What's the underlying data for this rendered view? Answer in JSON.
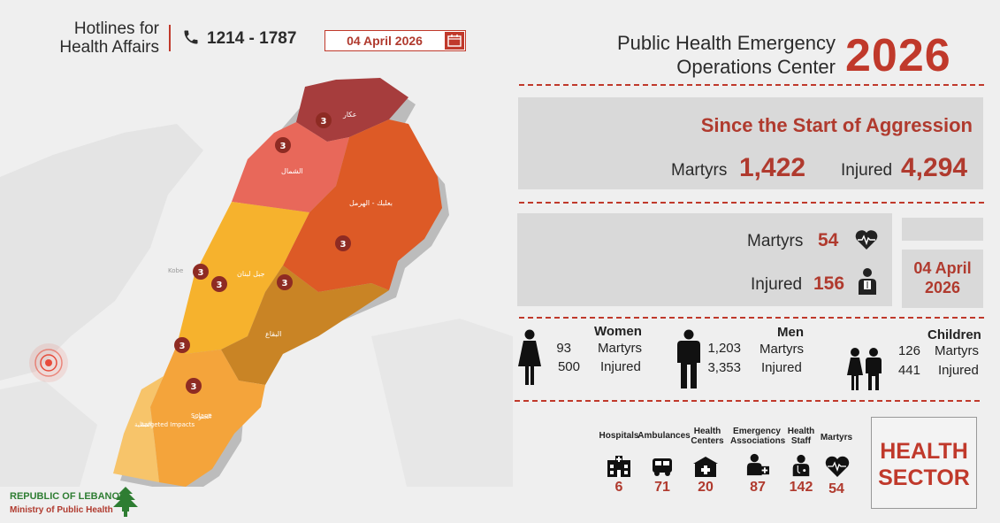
{
  "header": {
    "hotline_title": "Hotlines for Health Affairs",
    "hotline_number": "1214 - 1787",
    "date": "04 April 2026",
    "center_title": "Public Health Emergency Operations Center",
    "year": "2026"
  },
  "since_start": {
    "title": "Since the Start of Aggression",
    "martyrs_label": "Martyrs",
    "martyrs_value": "1,422",
    "injured_label": "Injured",
    "injured_value": "4,294"
  },
  "daily": {
    "martyrs_label": "Martyrs",
    "martyrs_value": "54",
    "injured_label": "Injured",
    "injured_value": "156",
    "date": "04 April 2026"
  },
  "demographics": {
    "women": {
      "title": "Women",
      "martyrs": "93",
      "injured": "500",
      "martyrs_label": "Martyrs",
      "injured_label": "Injured"
    },
    "men": {
      "title": "Men",
      "martyrs": "1,203",
      "injured": "3,353",
      "martyrs_label": "Martyrs",
      "injured_label": "Injured"
    },
    "children": {
      "title": "Children",
      "martyrs": "126",
      "injured": "441",
      "martyrs_label": "Martyrs",
      "injured_label": "Injured"
    }
  },
  "health_sector": {
    "title": "HEALTH SECTOR",
    "items": [
      {
        "label": "Hospitals",
        "value": "6",
        "icon": "hospital-icon"
      },
      {
        "label": "Ambulances",
        "value": "71",
        "icon": "ambulance-icon"
      },
      {
        "label": "Health Centers",
        "value": "20",
        "icon": "health-center-icon"
      },
      {
        "label": "Emergency Associations",
        "value": "87",
        "icon": "emergency-association-icon"
      },
      {
        "label": "Health Staff",
        "value": "142",
        "icon": "health-staff-icon"
      },
      {
        "label": "Martyrs",
        "value": "54",
        "icon": "heart-icon"
      }
    ]
  },
  "map": {
    "regions": [
      {
        "name": "عكار",
        "marker": "3",
        "color": "#a63d3d"
      },
      {
        "name": "الشمال",
        "marker": "3",
        "color": "#e8685a"
      },
      {
        "name": "بعلبك - الهرمل",
        "marker": "3",
        "color": "#dd5a26"
      },
      {
        "name": "جبل لبنان",
        "marker": "3",
        "color": "#f6b22d"
      },
      {
        "name": "البقاع",
        "marker": "3",
        "color": "#c98425"
      },
      {
        "name": "الجنوب",
        "marker": "3",
        "color": "#f4a43b"
      },
      {
        "name": "النبطية",
        "marker": "3",
        "color": "#f7c46a"
      }
    ],
    "marker_beirut": "3",
    "labels": {
      "city": "Kobe",
      "south1": "Solane",
      "south2": "targeted Impacts"
    }
  },
  "footer": {
    "republic": "REPUBLIC OF LEBANON",
    "ministry": "Ministry of Public Health"
  },
  "colors": {
    "accent": "#c0392b",
    "panel": "#d9d9d9",
    "text": "#2b2b2b"
  }
}
